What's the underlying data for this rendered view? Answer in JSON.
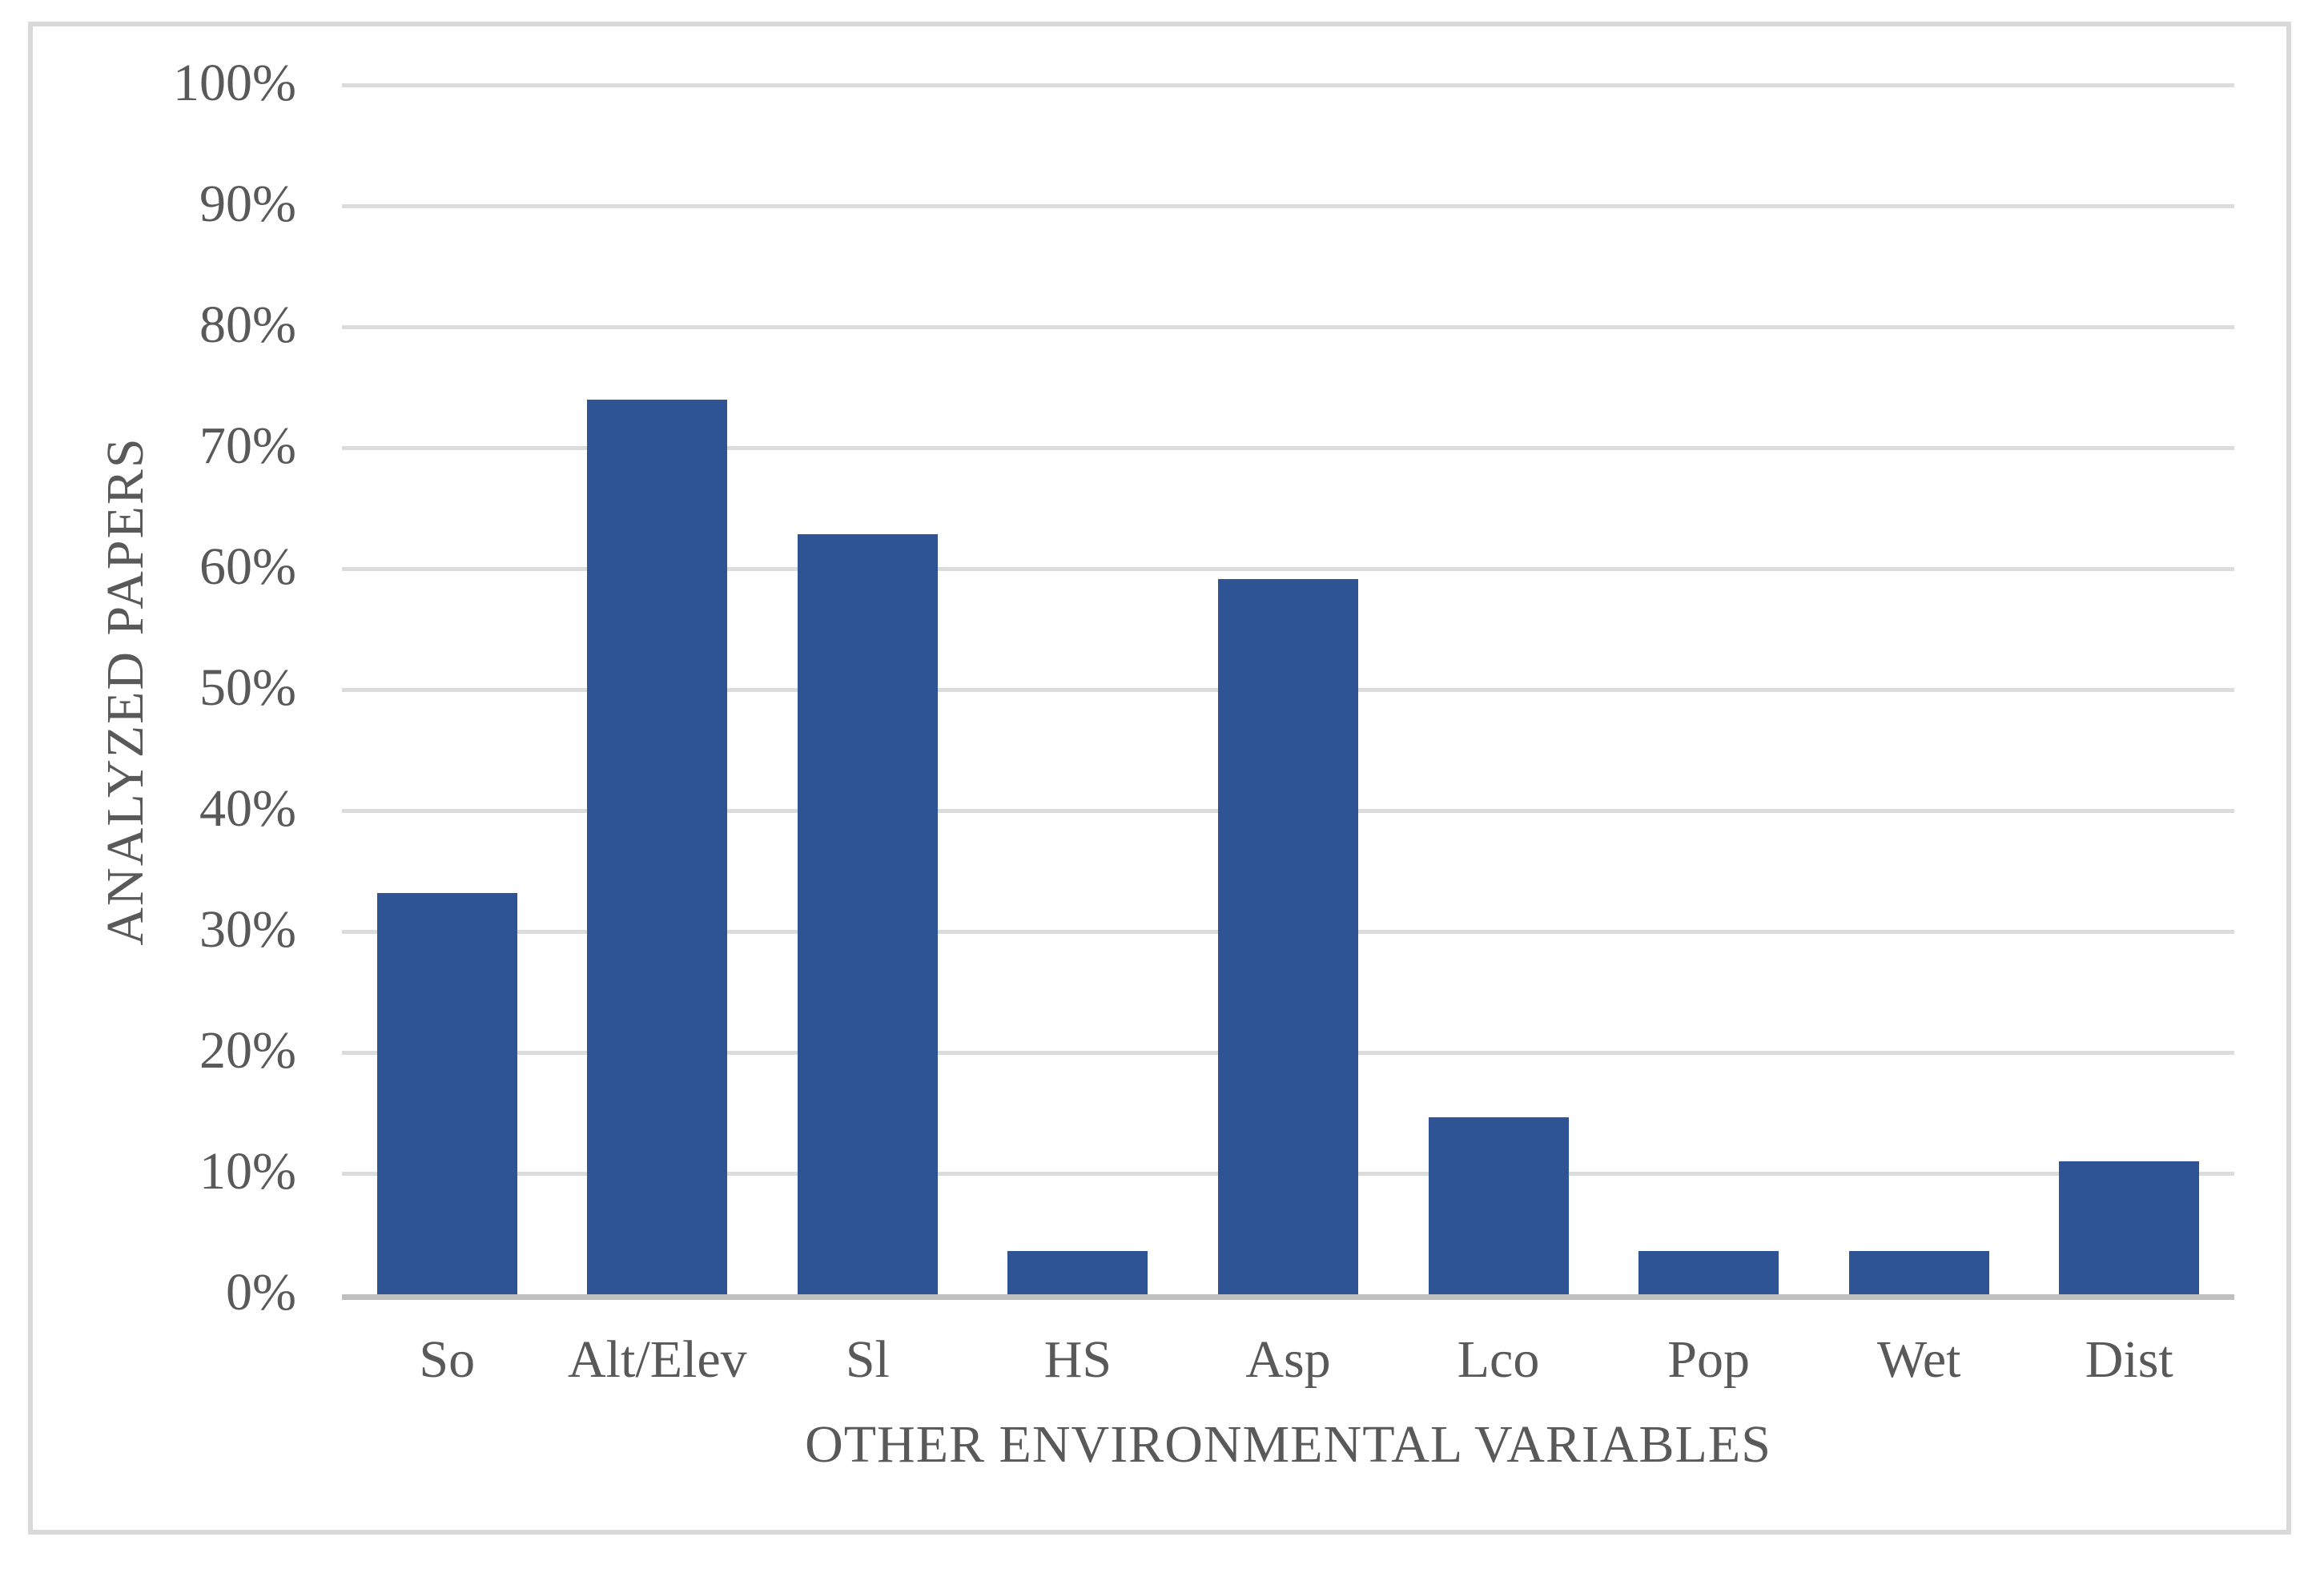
{
  "chart_data": {
    "type": "bar",
    "title": "",
    "categories": [
      "So",
      "Alt/Elev",
      "Sl",
      "HS",
      "Asp",
      "Lco",
      "Pop",
      "Wet",
      "Dist"
    ],
    "values": [
      33.3,
      74.1,
      63,
      3.7,
      59.3,
      14.8,
      3.7,
      3.7,
      11.1
    ],
    "xlabel": "OTHER ENVIRONMENTAL VARIABLES",
    "ylabel": "ANALYZED PAPERS",
    "ylim": [
      0,
      100
    ],
    "y_tick_step": 10,
    "y_tick_labels": [
      "0%",
      "10%",
      "20%",
      "30%",
      "40%",
      "50%",
      "60%",
      "70%",
      "80%",
      "90%",
      "100%"
    ],
    "grid": "horizontal-major",
    "legend": "none",
    "colors": {
      "bar": "#2F5496",
      "gridline": "#DCDCDC",
      "axis_line": "#BFBFBF",
      "frame_border": "#D9D9D9",
      "text": "#595959",
      "background": "#FFFFFF"
    }
  }
}
